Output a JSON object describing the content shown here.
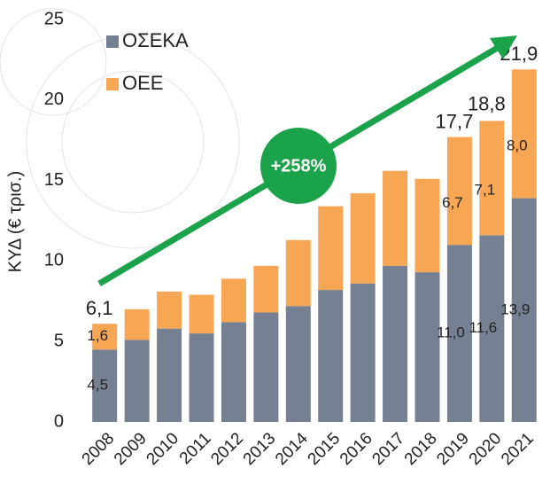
{
  "chart_data": {
    "type": "stacked_bar",
    "y_label": "ΚΥΔ (€ τρισ.)",
    "annotation": "+258%",
    "categories": [
      "2008",
      "2009",
      "2010",
      "2011",
      "2012",
      "2013",
      "2014",
      "2015",
      "2016",
      "2017",
      "2018",
      "2019",
      "2020",
      "2021"
    ],
    "series": [
      {
        "name": "ΟΣΕΚΑ",
        "color": "#758092",
        "values": [
          4.5,
          5.1,
          5.8,
          5.5,
          6.2,
          6.8,
          7.2,
          8.2,
          8.6,
          9.7,
          9.3,
          11.0,
          11.6,
          13.9
        ],
        "value_labels": [
          "4,5",
          null,
          null,
          null,
          null,
          null,
          null,
          null,
          null,
          null,
          null,
          "11,0",
          "11,6",
          "13,9"
        ]
      },
      {
        "name": "ΟΕΕ",
        "color": "#f7a654",
        "values": [
          1.6,
          1.9,
          2.3,
          2.4,
          2.7,
          2.9,
          4.1,
          5.2,
          5.6,
          5.9,
          5.8,
          6.7,
          7.1,
          8.0
        ],
        "value_labels": [
          "1,6",
          null,
          null,
          null,
          null,
          null,
          null,
          null,
          null,
          null,
          null,
          "6,7",
          "7,1",
          "8,0"
        ]
      }
    ],
    "totals": [
      6.1,
      null,
      null,
      null,
      null,
      null,
      null,
      null,
      null,
      null,
      null,
      17.7,
      18.8,
      21.9
    ],
    "total_labels": [
      "6,1",
      null,
      null,
      null,
      null,
      null,
      null,
      null,
      null,
      null,
      null,
      "17,7",
      "18,8",
      "21,9"
    ],
    "ylim": [
      0,
      25
    ],
    "yticks": [
      0,
      5,
      10,
      15,
      20,
      25
    ],
    "grid": false
  }
}
